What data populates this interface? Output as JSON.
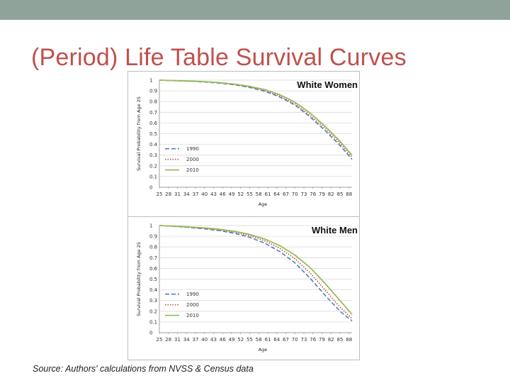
{
  "slide": {
    "title": "(Period) Life Table Survival Curves",
    "source": "Source: Authors' calculations from NVSS & Census data"
  },
  "colors": {
    "series_1990": "#4f81bd",
    "series_2000": "#c0504d",
    "series_2010": "#9bbb59",
    "title": "#c0504d",
    "top_bar": "#8fa39b"
  },
  "chart_data": [
    {
      "type": "line",
      "title": "White Women",
      "xlabel": "Age",
      "ylabel": "Survival Probability from Age 25",
      "x": [
        25,
        28,
        31,
        34,
        37,
        40,
        43,
        46,
        49,
        52,
        55,
        58,
        61,
        64,
        67,
        70,
        73,
        76,
        79,
        82,
        85,
        88
      ],
      "x_tick_labels": [
        "25",
        "28",
        "31",
        "34",
        "37",
        "40",
        "43",
        "46",
        "49",
        "52",
        "55",
        "58",
        "61",
        "64",
        "67",
        "70",
        "73",
        "76",
        "79",
        "82",
        "85",
        "88"
      ],
      "xlim": [
        25,
        89
      ],
      "ylim": [
        0,
        1
      ],
      "y_ticks": [
        "0",
        "0.1",
        "0.2",
        "0.3",
        "0.4",
        "0.5",
        "0.6",
        "0.7",
        "0.8",
        "0.9",
        "1"
      ],
      "grid": true,
      "legend_position": "bottom-left",
      "series": [
        {
          "name": "1990",
          "style": "dashed",
          "color": "#4f81bd",
          "x": [
            25,
            30,
            35,
            40,
            45,
            50,
            55,
            60,
            65,
            70,
            75,
            80,
            85,
            89
          ],
          "values": [
            1.0,
            0.995,
            0.99,
            0.983,
            0.972,
            0.956,
            0.932,
            0.896,
            0.843,
            0.768,
            0.658,
            0.53,
            0.39,
            0.26
          ]
        },
        {
          "name": "2000",
          "style": "dotted",
          "color": "#c0504d",
          "x": [
            25,
            30,
            35,
            40,
            45,
            50,
            55,
            60,
            65,
            70,
            75,
            80,
            85,
            89
          ],
          "values": [
            1.0,
            0.996,
            0.991,
            0.985,
            0.975,
            0.96,
            0.937,
            0.903,
            0.852,
            0.779,
            0.673,
            0.55,
            0.41,
            0.28
          ]
        },
        {
          "name": "2010",
          "style": "solid",
          "color": "#9bbb59",
          "x": [
            25,
            30,
            35,
            40,
            45,
            50,
            55,
            60,
            65,
            70,
            75,
            80,
            85,
            89
          ],
          "values": [
            1.0,
            0.996,
            0.992,
            0.986,
            0.977,
            0.963,
            0.942,
            0.911,
            0.864,
            0.795,
            0.695,
            0.57,
            0.43,
            0.3
          ]
        }
      ]
    },
    {
      "type": "line",
      "title": "White Men",
      "xlabel": "Age",
      "ylabel": "Survival Probability from Age 25",
      "x": [
        25,
        28,
        31,
        34,
        37,
        40,
        43,
        46,
        49,
        52,
        55,
        58,
        61,
        64,
        67,
        70,
        73,
        76,
        79,
        82,
        85,
        88
      ],
      "x_tick_labels": [
        "25",
        "28",
        "31",
        "34",
        "37",
        "40",
        "43",
        "46",
        "49",
        "52",
        "55",
        "58",
        "61",
        "64",
        "67",
        "70",
        "73",
        "76",
        "79",
        "82",
        "85",
        "88"
      ],
      "xlim": [
        25,
        89
      ],
      "ylim": [
        0,
        1
      ],
      "y_ticks": [
        "0",
        "0.1",
        "0.2",
        "0.3",
        "0.4",
        "0.5",
        "0.6",
        "0.7",
        "0.8",
        "0.9",
        "1"
      ],
      "grid": true,
      "legend_position": "bottom-left",
      "series": [
        {
          "name": "1990",
          "style": "dashed",
          "color": "#4f81bd",
          "x": [
            25,
            30,
            35,
            40,
            45,
            50,
            55,
            60,
            65,
            70,
            75,
            80,
            85,
            89
          ],
          "values": [
            1.0,
            0.992,
            0.982,
            0.969,
            0.952,
            0.928,
            0.89,
            0.835,
            0.757,
            0.652,
            0.51,
            0.35,
            0.2,
            0.11
          ]
        },
        {
          "name": "2000",
          "style": "dotted",
          "color": "#c0504d",
          "x": [
            25,
            30,
            35,
            40,
            45,
            50,
            55,
            60,
            65,
            70,
            75,
            80,
            85,
            89
          ],
          "values": [
            1.0,
            0.993,
            0.985,
            0.974,
            0.959,
            0.938,
            0.905,
            0.857,
            0.788,
            0.69,
            0.56,
            0.4,
            0.24,
            0.13
          ]
        },
        {
          "name": "2010",
          "style": "solid",
          "color": "#9bbb59",
          "x": [
            25,
            30,
            35,
            40,
            45,
            50,
            55,
            60,
            65,
            70,
            75,
            80,
            85,
            89
          ],
          "values": [
            1.0,
            0.994,
            0.987,
            0.978,
            0.965,
            0.946,
            0.917,
            0.874,
            0.812,
            0.725,
            0.61,
            0.46,
            0.3,
            0.17
          ]
        }
      ]
    }
  ]
}
